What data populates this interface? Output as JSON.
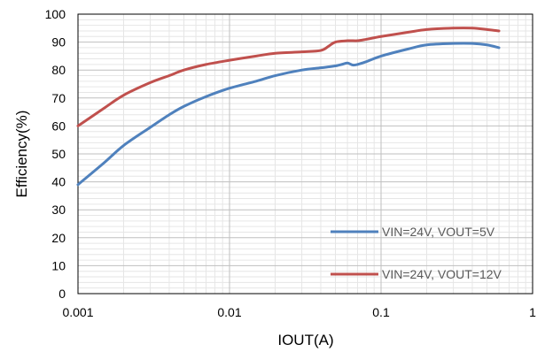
{
  "chart_data": {
    "type": "line",
    "xscale": "log",
    "xlim": [
      0.001,
      1
    ],
    "ylim": [
      0,
      100
    ],
    "xticks": [
      0.001,
      0.01,
      0.1,
      1
    ],
    "xtick_labels": [
      "0.001",
      "0.01",
      "0.1",
      "1"
    ],
    "yticks": [
      0,
      10,
      20,
      30,
      40,
      50,
      60,
      70,
      80,
      90,
      100
    ],
    "xlabel": "IOUT(A)",
    "ylabel": "Efficiency(%)",
    "grid": true,
    "legend_position": "bottom-right",
    "series": [
      {
        "name": "VIN=24V, VOUT=5V",
        "color": "#4F81BD",
        "x": [
          0.001,
          0.0015,
          0.002,
          0.003,
          0.004,
          0.005,
          0.007,
          0.01,
          0.015,
          0.02,
          0.03,
          0.04,
          0.05,
          0.055,
          0.06,
          0.065,
          0.07,
          0.08,
          0.1,
          0.15,
          0.2,
          0.3,
          0.4,
          0.5,
          0.6
        ],
        "y": [
          39,
          47,
          53,
          59.5,
          64,
          67,
          70.5,
          73.5,
          76,
          78,
          80,
          80.8,
          81.5,
          82,
          82.5,
          81.8,
          82,
          83,
          85,
          87.5,
          89,
          89.5,
          89.5,
          89,
          88
        ]
      },
      {
        "name": "VIN=24V, VOUT=12V",
        "color": "#C0504D",
        "x": [
          0.001,
          0.0015,
          0.002,
          0.003,
          0.004,
          0.005,
          0.007,
          0.01,
          0.015,
          0.02,
          0.03,
          0.04,
          0.045,
          0.05,
          0.06,
          0.07,
          0.08,
          0.1,
          0.15,
          0.2,
          0.3,
          0.4,
          0.5,
          0.6
        ],
        "y": [
          60,
          66.5,
          71,
          75.5,
          78,
          80,
          82,
          83.5,
          85,
          86,
          86.5,
          87,
          88.5,
          90,
          90.5,
          90.5,
          91,
          92,
          93.5,
          94.5,
          95,
          95,
          94.5,
          94
        ]
      }
    ]
  }
}
